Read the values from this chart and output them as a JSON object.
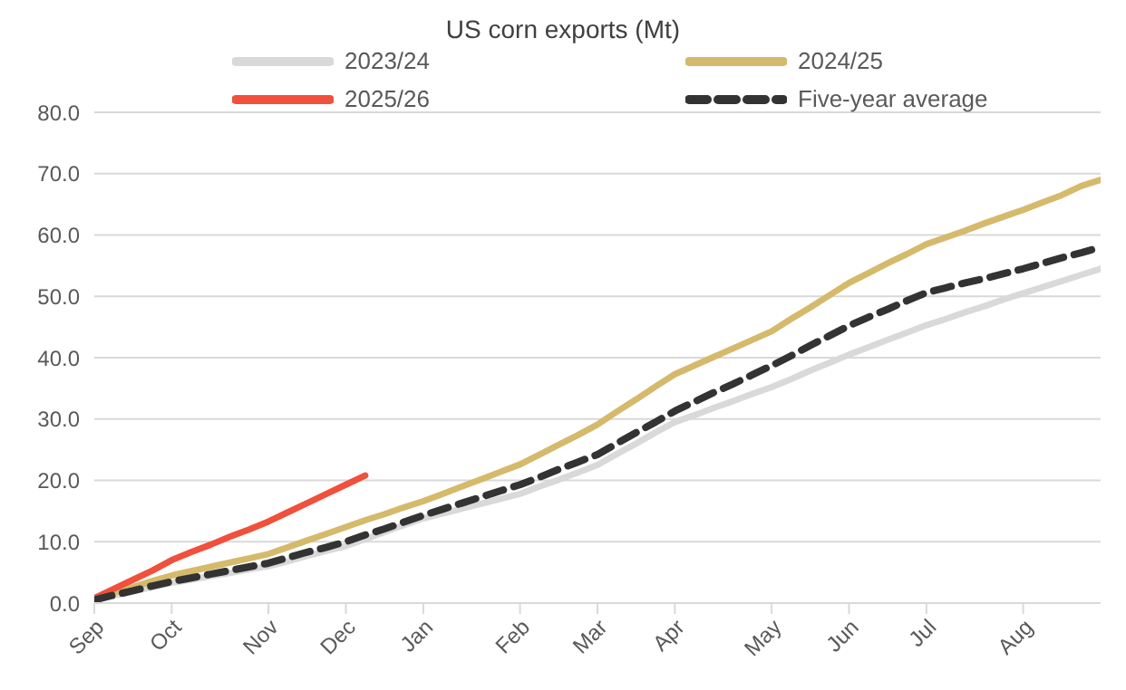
{
  "chart_data": {
    "type": "line",
    "title": "US corn exports (Mt)",
    "categories": [
      "Sep",
      null,
      null,
      null,
      "Oct",
      null,
      null,
      null,
      null,
      "Nov",
      null,
      null,
      null,
      "Dec",
      null,
      null,
      null,
      "Jan",
      null,
      null,
      null,
      null,
      "Feb",
      null,
      null,
      null,
      "Mar",
      null,
      null,
      null,
      "Apr",
      null,
      null,
      null,
      null,
      "May",
      null,
      null,
      null,
      "Jun",
      null,
      null,
      null,
      "Jul",
      null,
      null,
      null,
      null,
      "Aug",
      null,
      null,
      null,
      null
    ],
    "series": [
      {
        "name": "2023/24",
        "color": "#d9d9d9",
        "line_style": "solid",
        "values": [
          0.5,
          1.2,
          1.9,
          2.6,
          3.3,
          3.8,
          4.4,
          4.9,
          5.5,
          6.0,
          6.8,
          7.7,
          8.5,
          9.3,
          10.4,
          11.6,
          12.7,
          13.8,
          14.6,
          15.4,
          16.2,
          17.0,
          17.8,
          19.0,
          20.1,
          21.3,
          22.5,
          24.3,
          26.0,
          27.8,
          29.5,
          30.6,
          31.8,
          32.9,
          34.1,
          35.2,
          36.5,
          37.9,
          39.2,
          40.5,
          41.7,
          42.9,
          44.1,
          45.3,
          46.3,
          47.4,
          48.4,
          49.5,
          50.5,
          51.5,
          52.5,
          53.5,
          54.5
        ]
      },
      {
        "name": "2024/25",
        "color": "#d5ba6c",
        "line_style": "solid",
        "values": [
          0.8,
          1.7,
          2.6,
          3.6,
          4.5,
          5.2,
          5.9,
          6.6,
          7.3,
          8.0,
          9.1,
          10.2,
          11.3,
          12.4,
          13.5,
          14.5,
          15.6,
          16.6,
          17.8,
          19.0,
          20.2,
          21.4,
          22.6,
          24.2,
          25.8,
          27.4,
          29.1,
          31.2,
          33.2,
          35.3,
          37.3,
          38.7,
          40.1,
          41.5,
          42.9,
          44.3,
          46.3,
          48.2,
          50.2,
          52.2,
          53.8,
          55.4,
          56.9,
          58.5,
          59.6,
          60.7,
          61.9,
          63.0,
          64.1,
          65.3,
          66.5,
          68.0,
          69.0
        ]
      },
      {
        "name": "2025/26",
        "color": "#f0503c",
        "line_style": "solid",
        "values": [
          0.8,
          2.3,
          3.8,
          5.3,
          7.0,
          8.3,
          9.5,
          10.8,
          12.0,
          13.3,
          14.8,
          16.3,
          17.8,
          19.3,
          20.8,
          null,
          null,
          null,
          null,
          null,
          null,
          null,
          null,
          null,
          null,
          null,
          null,
          null,
          null,
          null,
          null,
          null,
          null,
          null,
          null,
          null,
          null,
          null,
          null,
          null,
          null,
          null,
          null,
          null,
          null,
          null,
          null,
          null,
          null,
          null,
          null,
          null,
          null
        ]
      },
      {
        "name": "Five-year average",
        "color": "#333333",
        "line_style": "dashed",
        "values": [
          0.5,
          1.3,
          2.0,
          2.8,
          3.5,
          4.1,
          4.7,
          5.3,
          5.9,
          6.5,
          7.4,
          8.3,
          9.1,
          10.0,
          11.1,
          12.1,
          13.2,
          14.3,
          15.3,
          16.3,
          17.3,
          18.3,
          19.3,
          20.5,
          21.8,
          23.0,
          24.2,
          26.0,
          27.8,
          29.5,
          31.3,
          32.8,
          34.3,
          35.7,
          37.2,
          38.7,
          40.3,
          42.0,
          43.6,
          45.2,
          46.6,
          47.9,
          49.3,
          50.6,
          51.4,
          52.2,
          52.9,
          53.7,
          54.5,
          55.4,
          56.3,
          57.1,
          58.0
        ]
      }
    ],
    "ylim": [
      0,
      80
    ],
    "yticks": [
      {
        "value": 0,
        "label": "0.0"
      },
      {
        "value": 10,
        "label": "10.0"
      },
      {
        "value": 20,
        "label": "20.0"
      },
      {
        "value": 30,
        "label": "30.0"
      },
      {
        "value": 40,
        "label": "40.0"
      },
      {
        "value": 50,
        "label": "50.0"
      },
      {
        "value": 60,
        "label": "60.0"
      },
      {
        "value": 70,
        "label": "70.0"
      },
      {
        "value": 80,
        "label": "80.0"
      }
    ],
    "grid": "y",
    "legend": "top",
    "marker": "none"
  }
}
